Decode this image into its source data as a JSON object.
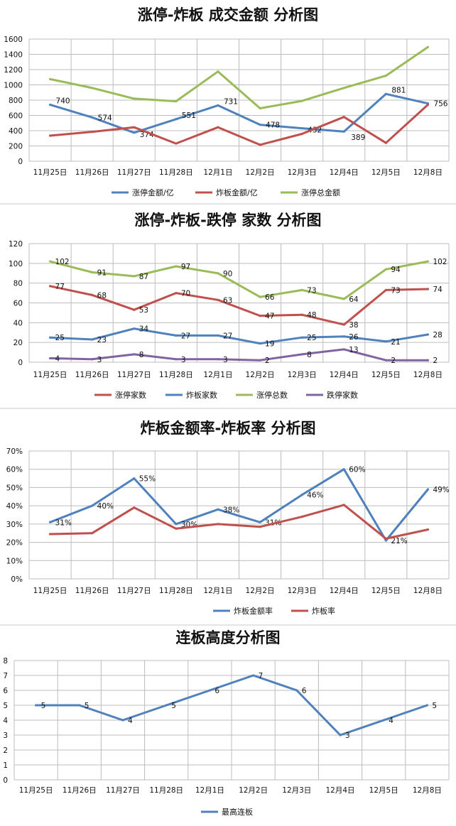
{
  "chart_data": [
    {
      "type": "line",
      "title": "涨停-炸板 成交金额 分析图",
      "categories": [
        "11月25日",
        "11月26日",
        "11月27日",
        "11月28日",
        "12月1日",
        "12月2日",
        "12月3日",
        "12月4日",
        "12月5日",
        "12月8日"
      ],
      "ylim": [
        0,
        1600
      ],
      "yticks": [
        "0",
        "200",
        "400",
        "600",
        "800",
        "1000",
        "1200",
        "1400",
        "1600"
      ],
      "grid": true,
      "legend": "bottom",
      "series": [
        {
          "name": "涨停金额/亿",
          "color": "#4f81bd",
          "values": [
            740,
            574,
            374,
            551,
            731,
            478,
            432,
            389,
            881,
            756
          ],
          "labels": [
            "740",
            "574",
            "374",
            "551",
            "731",
            "478",
            "432",
            "389",
            "881",
            "756"
          ]
        },
        {
          "name": "炸板金额/亿",
          "color": "#c0504d",
          "values": [
            335,
            385,
            445,
            232,
            445,
            215,
            358,
            580,
            240,
            740
          ]
        },
        {
          "name": "涨停总金额",
          "color": "#9bbb59",
          "values": [
            1075,
            960,
            820,
            785,
            1175,
            693,
            790,
            960,
            1120,
            1495
          ]
        }
      ]
    },
    {
      "type": "line",
      "title": "涨停-炸板-跌停 家数 分析图",
      "categories": [
        "11月25日",
        "11月26日",
        "11月27日",
        "11月28日",
        "12月1日",
        "12月2日",
        "12月3日",
        "12月4日",
        "12月5日",
        "12月8日"
      ],
      "ylim": [
        0,
        120
      ],
      "yticks": [
        "0",
        "20",
        "40",
        "60",
        "80",
        "100",
        "120"
      ],
      "grid": true,
      "legend": "bottom",
      "series": [
        {
          "name": "涨停家数",
          "color": "#c0504d",
          "values": [
            77,
            68,
            53,
            70,
            63,
            47,
            48,
            38,
            73,
            74
          ],
          "labels": [
            "77",
            "68",
            "53",
            "70",
            "63",
            "47",
            "48",
            "38",
            "73",
            "74"
          ]
        },
        {
          "name": "炸板家数",
          "color": "#4f81bd",
          "values": [
            25,
            23,
            34,
            27,
            27,
            19,
            25,
            26,
            21,
            28
          ],
          "labels": [
            "25",
            "23",
            "34",
            "27",
            "27",
            "19",
            "25",
            "26",
            "21",
            "28"
          ]
        },
        {
          "name": "涨停总数",
          "color": "#9bbb59",
          "values": [
            102,
            91,
            87,
            97,
            90,
            66,
            73,
            64,
            94,
            102
          ],
          "labels": [
            "102",
            "91",
            "87",
            "97",
            "90",
            "66",
            "73",
            "64",
            "94",
            "102"
          ]
        },
        {
          "name": "跌停家数",
          "color": "#8064a2",
          "values": [
            4,
            3,
            8,
            3,
            3,
            2,
            8,
            13,
            2,
            2
          ],
          "labels": [
            "4",
            "3",
            "8",
            "3",
            "3",
            "2",
            "8",
            "13",
            "2",
            "2"
          ]
        }
      ]
    },
    {
      "type": "line",
      "title": "炸板金额率-炸板率 分析图",
      "categories": [
        "11月25日",
        "11月26日",
        "11月27日",
        "11月28日",
        "12月1日",
        "12月2日",
        "12月3日",
        "12月4日",
        "12月5日",
        "12月8日"
      ],
      "ylim": [
        0,
        70
      ],
      "yticks": [
        "0%",
        "10%",
        "20%",
        "30%",
        "40%",
        "50%",
        "60%",
        "70%"
      ],
      "grid": true,
      "legend": "bottom",
      "series": [
        {
          "name": "炸板金额率",
          "color": "#4f81bd",
          "values": [
            31,
            40,
            55,
            30,
            38,
            31,
            46,
            60,
            21,
            49
          ],
          "labels": [
            "31%",
            "40%",
            "55%",
            "30%",
            "38%",
            "31%",
            "46%",
            "60%",
            "21%",
            "49%"
          ]
        },
        {
          "name": "炸板率",
          "color": "#c0504d",
          "values": [
            24.5,
            25,
            39,
            27.5,
            30,
            28.5,
            34,
            40.5,
            22,
            27
          ]
        }
      ]
    },
    {
      "type": "line",
      "title": "连板高度分析图",
      "categories": [
        "11月25日",
        "11月26日",
        "11月27日",
        "11月28日",
        "12月1日",
        "12月2日",
        "12月3日",
        "12月4日",
        "12月5日",
        "12月8日"
      ],
      "ylim": [
        0,
        8
      ],
      "yticks": [
        "0",
        "1",
        "2",
        "3",
        "4",
        "5",
        "6",
        "7",
        "8"
      ],
      "grid": true,
      "legend": "bottom",
      "series": [
        {
          "name": "最高连板",
          "color": "#4f81bd",
          "values": [
            5,
            5,
            4,
            5,
            6,
            7,
            6,
            3,
            4,
            5
          ],
          "labels": [
            "5",
            "5",
            "4",
            "5",
            "6",
            "7",
            "6",
            "3",
            "4",
            "5"
          ]
        }
      ]
    }
  ]
}
